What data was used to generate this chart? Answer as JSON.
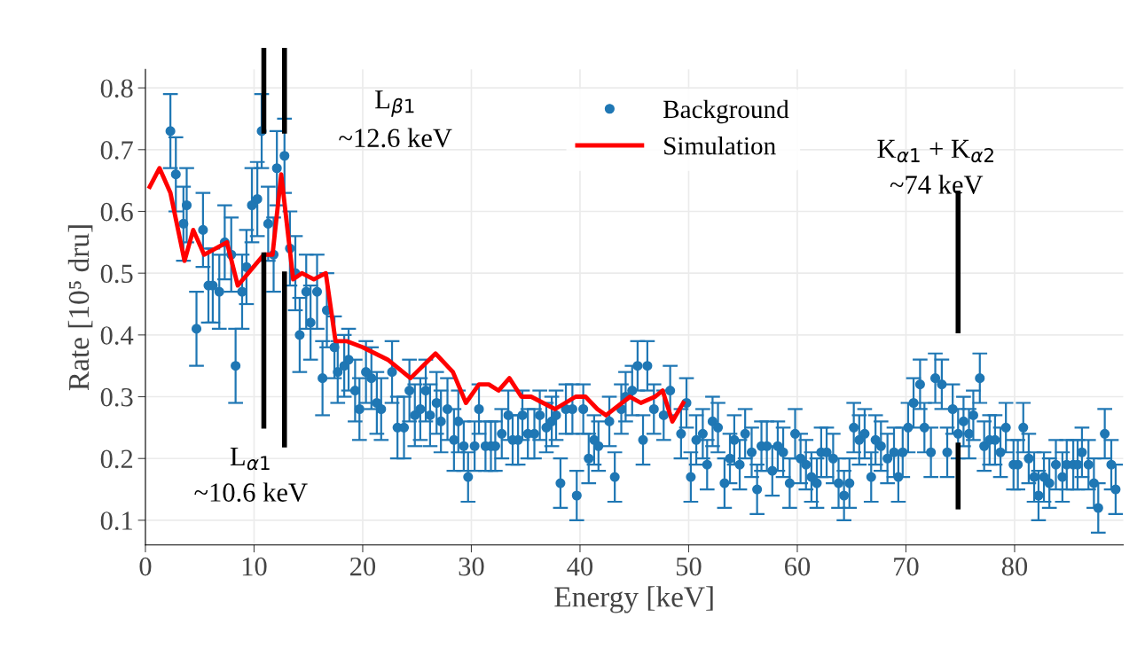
{
  "chart_data": {
    "type": "scatter",
    "xlabel": "Energy [keV]",
    "ylabel": "Rate [10⁵ dru]",
    "xlim": [
      0,
      90
    ],
    "xticks": [
      0,
      10,
      20,
      30,
      40,
      50,
      60,
      70,
      80
    ],
    "ylim": [
      0.06,
      0.83
    ],
    "yticks": [
      0.1,
      0.2,
      0.3,
      0.4,
      0.5,
      0.6,
      0.7,
      0.8
    ],
    "grid": true,
    "legend": "top",
    "marker": "circle",
    "series": [
      {
        "name": "Background",
        "color": "#1f77b4",
        "x": [
          2.3,
          2.8,
          3.5,
          3.8,
          4.7,
          5.3,
          5.8,
          6.2,
          6.8,
          7.3,
          7.9,
          8.3,
          8.9,
          9.3,
          9.8,
          10.3,
          10.7,
          11.3,
          11.8,
          12.1,
          12.8,
          13.3,
          13.8,
          14.2,
          14.8,
          15.2,
          15.8,
          16.3,
          16.7,
          17.4,
          17.7,
          18.3,
          18.7,
          19.3,
          19.7,
          20.3,
          20.8,
          21.3,
          21.7,
          22.7,
          23.2,
          23.8,
          24.3,
          24.8,
          25.3,
          25.8,
          26.2,
          26.8,
          27.2,
          27.8,
          28.4,
          28.8,
          29.3,
          29.7,
          30.3,
          30.7,
          31.3,
          31.8,
          32.2,
          32.8,
          33.4,
          33.8,
          34.3,
          34.7,
          35.2,
          35.8,
          36.3,
          36.9,
          37.4,
          37.8,
          38.2,
          38.7,
          39.3,
          39.7,
          40.3,
          40.8,
          41.3,
          41.7,
          42.7,
          43.2,
          43.8,
          44.2,
          44.8,
          45.3,
          45.8,
          46.2,
          46.8,
          47.7,
          48.3,
          49.3,
          49.8,
          50.2,
          50.7,
          51.3,
          51.7,
          52.2,
          52.7,
          53.3,
          53.8,
          54.2,
          54.7,
          55.2,
          55.8,
          56.3,
          56.7,
          57.2,
          57.7,
          58.2,
          58.7,
          59.3,
          59.8,
          60.3,
          60.8,
          61.3,
          61.8,
          62.2,
          62.7,
          63.3,
          63.8,
          64.3,
          64.8,
          65.2,
          65.7,
          66.2,
          66.8,
          67.2,
          67.7,
          68.3,
          68.9,
          69.3,
          69.7,
          70.2,
          70.7,
          71.3,
          71.7,
          72.3,
          72.7,
          73.3,
          73.8,
          74.3,
          74.8,
          75.3,
          75.8,
          76.2,
          76.8,
          77.2,
          77.7,
          78.2,
          78.7,
          79.2,
          79.9,
          80.3,
          80.8,
          81.3,
          81.8,
          82.2,
          82.7,
          83.2,
          83.8,
          84.4,
          84.8,
          85.4,
          85.8,
          86.2,
          86.8,
          87.3,
          87.7,
          88.3,
          88.9,
          89.3
        ],
        "values": [
          0.73,
          0.66,
          0.58,
          0.61,
          0.41,
          0.57,
          0.48,
          0.48,
          0.47,
          0.55,
          0.53,
          0.35,
          0.47,
          0.51,
          0.61,
          0.62,
          0.73,
          0.58,
          0.53,
          0.67,
          0.69,
          0.54,
          0.5,
          0.4,
          0.47,
          0.42,
          0.47,
          0.33,
          0.44,
          0.38,
          0.34,
          0.35,
          0.36,
          0.31,
          0.28,
          0.34,
          0.33,
          0.29,
          0.28,
          0.34,
          0.25,
          0.25,
          0.31,
          0.27,
          0.28,
          0.31,
          0.27,
          0.29,
          0.26,
          0.28,
          0.23,
          0.26,
          0.22,
          0.17,
          0.22,
          0.28,
          0.22,
          0.22,
          0.22,
          0.24,
          0.27,
          0.23,
          0.23,
          0.27,
          0.24,
          0.24,
          0.27,
          0.25,
          0.26,
          0.27,
          0.16,
          0.28,
          0.28,
          0.14,
          0.28,
          0.2,
          0.23,
          0.22,
          0.26,
          0.17,
          0.28,
          0.3,
          0.31,
          0.35,
          0.23,
          0.35,
          0.28,
          0.27,
          0.31,
          0.24,
          0.29,
          0.17,
          0.23,
          0.24,
          0.19,
          0.26,
          0.25,
          0.16,
          0.2,
          0.23,
          0.19,
          0.24,
          0.21,
          0.15,
          0.22,
          0.22,
          0.18,
          0.22,
          0.21,
          0.16,
          0.24,
          0.2,
          0.19,
          0.17,
          0.16,
          0.21,
          0.21,
          0.2,
          0.16,
          0.14,
          0.16,
          0.25,
          0.23,
          0.24,
          0.17,
          0.23,
          0.22,
          0.2,
          0.21,
          0.17,
          0.21,
          0.25,
          0.29,
          0.32,
          0.25,
          0.21,
          0.33,
          0.32,
          0.21,
          0.28,
          0.24,
          0.26,
          0.24,
          0.27,
          0.33,
          0.22,
          0.23,
          0.23,
          0.21,
          0.25,
          0.19,
          0.19,
          0.25,
          0.2,
          0.17,
          0.14,
          0.17,
          0.16,
          0.19,
          0.17,
          0.19,
          0.19,
          0.19,
          0.21,
          0.19,
          0.16,
          0.12,
          0.24,
          0.19,
          0.15
        ],
        "errors": [
          0.06,
          0.06,
          0.06,
          0.06,
          0.06,
          0.06,
          0.06,
          0.06,
          0.06,
          0.06,
          0.06,
          0.06,
          0.06,
          0.06,
          0.06,
          0.06,
          0.06,
          0.06,
          0.06,
          0.06,
          0.06,
          0.06,
          0.06,
          0.06,
          0.06,
          0.06,
          0.06,
          0.06,
          0.06,
          0.05,
          0.05,
          0.05,
          0.05,
          0.05,
          0.05,
          0.05,
          0.05,
          0.05,
          0.05,
          0.05,
          0.05,
          0.05,
          0.05,
          0.05,
          0.05,
          0.05,
          0.05,
          0.05,
          0.05,
          0.05,
          0.05,
          0.05,
          0.04,
          0.04,
          0.04,
          0.04,
          0.04,
          0.04,
          0.04,
          0.04,
          0.04,
          0.04,
          0.04,
          0.04,
          0.04,
          0.04,
          0.04,
          0.04,
          0.04,
          0.04,
          0.04,
          0.04,
          0.04,
          0.04,
          0.04,
          0.04,
          0.04,
          0.04,
          0.04,
          0.04,
          0.04,
          0.04,
          0.04,
          0.04,
          0.04,
          0.04,
          0.04,
          0.04,
          0.04,
          0.04,
          0.04,
          0.04,
          0.04,
          0.04,
          0.04,
          0.04,
          0.04,
          0.04,
          0.04,
          0.04,
          0.04,
          0.04,
          0.04,
          0.04,
          0.04,
          0.04,
          0.04,
          0.04,
          0.04,
          0.04,
          0.04,
          0.04,
          0.04,
          0.04,
          0.04,
          0.04,
          0.04,
          0.04,
          0.04,
          0.04,
          0.04,
          0.04,
          0.04,
          0.04,
          0.04,
          0.04,
          0.04,
          0.04,
          0.04,
          0.04,
          0.04,
          0.04,
          0.04,
          0.04,
          0.04,
          0.04,
          0.04,
          0.04,
          0.04,
          0.04,
          0.04,
          0.04,
          0.04,
          0.04,
          0.04,
          0.04,
          0.04,
          0.04,
          0.04,
          0.04,
          0.04,
          0.04,
          0.04,
          0.04,
          0.04,
          0.04,
          0.04,
          0.04,
          0.04,
          0.04,
          0.04,
          0.04,
          0.04,
          0.04,
          0.04,
          0.04,
          0.04,
          0.04,
          0.04,
          0.04
        ]
      },
      {
        "name": "Simulation",
        "type": "line",
        "color": "#ff0000",
        "marker": "none",
        "x": [
          0.4,
          1.3,
          2.3,
          3.6,
          4.4,
          5.4,
          7.5,
          8.5,
          10.9,
          11.7,
          12.5,
          13.6,
          14.4,
          15.5,
          16.6,
          17.5,
          18.5,
          20.0,
          22.3,
          24.4,
          26.7,
          28.3,
          29.5,
          30.7,
          31.6,
          32.5,
          33.5,
          34.6,
          35.5,
          37.7,
          39.6,
          40.5,
          41.6,
          42.4,
          44.6,
          45.6,
          46.9,
          47.6,
          48.5,
          49.5
        ],
        "values": [
          0.64,
          0.67,
          0.63,
          0.52,
          0.57,
          0.53,
          0.55,
          0.48,
          0.53,
          0.53,
          0.66,
          0.49,
          0.5,
          0.49,
          0.5,
          0.39,
          0.39,
          0.38,
          0.36,
          0.33,
          0.37,
          0.34,
          0.29,
          0.32,
          0.32,
          0.31,
          0.33,
          0.3,
          0.3,
          0.28,
          0.3,
          0.3,
          0.28,
          0.27,
          0.3,
          0.29,
          0.3,
          0.31,
          0.26,
          0.29
        ]
      }
    ],
    "ref_lines": [
      {
        "axis": "x",
        "value": 10.9,
        "label": "L$_{α1}$\n~10.6 keV",
        "color": "#000000"
      },
      {
        "axis": "x",
        "value": 12.8,
        "label": "L$_{β1}$\n~12.6 keV",
        "color": "#000000"
      },
      {
        "axis": "x",
        "value": 74.8,
        "label": "K$_{α1}$ + K$_{α2}$\n~74 keV",
        "color": "#000000"
      }
    ]
  }
}
